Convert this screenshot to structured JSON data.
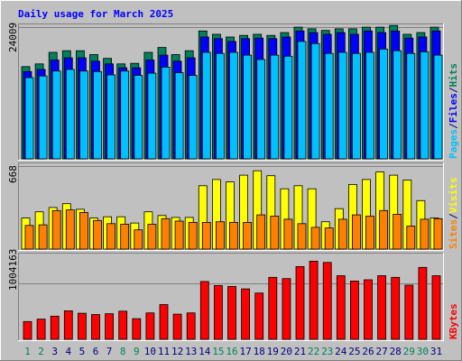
{
  "title": "Daily usage for March 2025",
  "colors": {
    "background": "#c0c0c0",
    "title": "#0000ff",
    "hits": "#00805c",
    "files": "#0000ff",
    "pages": "#00c0ff",
    "visits": "#ffff00",
    "sites": "#ff8000",
    "kbytes": "#ff0000",
    "weekend_label": "#00805c",
    "weekday_label": "#000080"
  },
  "chart_data": [
    {
      "type": "bar",
      "panel": "hits-files-pages",
      "categories": [
        "1",
        "2",
        "3",
        "4",
        "5",
        "6",
        "7",
        "8",
        "9",
        "10",
        "11",
        "12",
        "13",
        "14",
        "15",
        "16",
        "17",
        "18",
        "19",
        "20",
        "21",
        "22",
        "23",
        "24",
        "25",
        "26",
        "27",
        "28",
        "29",
        "30",
        "31"
      ],
      "weekend_days": [
        "1",
        "2",
        "8",
        "9",
        "15",
        "16",
        "22",
        "23",
        "29",
        "30"
      ],
      "axis_max_label": "24009",
      "ylim": [
        0,
        24009
      ],
      "legend": [
        {
          "label": "Pages",
          "color": "#00c0ff"
        },
        {
          "label": "/",
          "color": "#000080"
        },
        {
          "label": "Files",
          "color": "#0000ff"
        },
        {
          "label": "/",
          "color": "#000080"
        },
        {
          "label": "Hits",
          "color": "#00805c"
        }
      ],
      "series": [
        {
          "name": "Hits",
          "values": [
            16800,
            17300,
            19400,
            19700,
            19700,
            19000,
            18300,
            17300,
            17400,
            19400,
            20300,
            19000,
            19700,
            23300,
            22700,
            22200,
            22500,
            22700,
            22500,
            23000,
            24000,
            23700,
            23400,
            23700,
            23700,
            24000,
            24000,
            24300,
            22700,
            23000,
            24000
          ]
        },
        {
          "name": "Files",
          "values": [
            15900,
            16300,
            18000,
            18400,
            18400,
            17800,
            17300,
            16600,
            16600,
            18000,
            18900,
            17800,
            18400,
            22200,
            21900,
            21400,
            21900,
            22000,
            21900,
            22200,
            23300,
            23000,
            22700,
            23000,
            22700,
            23300,
            23000,
            23300,
            22000,
            22200,
            23300
          ]
        },
        {
          "name": "Pages",
          "values": [
            14800,
            15100,
            16000,
            16300,
            16000,
            15900,
            15300,
            16000,
            15200,
            15600,
            16700,
            15700,
            15200,
            19400,
            19200,
            19400,
            18900,
            18100,
            18900,
            18700,
            21400,
            21000,
            19200,
            19400,
            19200,
            19400,
            20000,
            19700,
            19200,
            19500,
            18900
          ]
        }
      ]
    },
    {
      "type": "bar",
      "panel": "visits-sites",
      "categories": [
        "1",
        "2",
        "3",
        "4",
        "5",
        "6",
        "7",
        "8",
        "9",
        "10",
        "11",
        "12",
        "13",
        "14",
        "15",
        "16",
        "17",
        "18",
        "19",
        "20",
        "21",
        "22",
        "23",
        "24",
        "25",
        "26",
        "27",
        "28",
        "29",
        "30",
        "31"
      ],
      "axis_max_label": "668",
      "ylim": [
        0,
        668
      ],
      "legend": [
        {
          "label": "Sites",
          "color": "#ff8000"
        },
        {
          "label": "/",
          "color": "#000080"
        },
        {
          "label": "Visits",
          "color": "#ffff00"
        }
      ],
      "series": [
        {
          "name": "Visits",
          "values": [
            250,
            300,
            335,
            365,
            320,
            250,
            260,
            260,
            210,
            300,
            270,
            255,
            255,
            510,
            560,
            540,
            595,
            630,
            590,
            485,
            510,
            485,
            220,
            325,
            520,
            560,
            620,
            595,
            555,
            390,
            250
          ]
        },
        {
          "name": "Sites",
          "values": [
            190,
            195,
            310,
            315,
            295,
            230,
            205,
            200,
            155,
            200,
            245,
            225,
            215,
            215,
            220,
            215,
            215,
            275,
            265,
            240,
            205,
            175,
            170,
            240,
            275,
            265,
            310,
            280,
            185,
            240,
            245
          ]
        }
      ]
    },
    {
      "type": "bar",
      "panel": "kbytes",
      "categories": [
        "1",
        "2",
        "3",
        "4",
        "5",
        "6",
        "7",
        "8",
        "9",
        "10",
        "11",
        "12",
        "13",
        "14",
        "15",
        "16",
        "17",
        "18",
        "19",
        "20",
        "21",
        "22",
        "23",
        "24",
        "25",
        "26",
        "27",
        "28",
        "29",
        "30",
        "31"
      ],
      "axis_max_label": "1004163",
      "ylim": [
        0,
        1004163
      ],
      "legend": [
        {
          "label": "KBytes",
          "color": "#ff0000"
        }
      ],
      "series": [
        {
          "name": "KBytes",
          "values": [
            215000,
            245000,
            280000,
            345000,
            315000,
            300000,
            310000,
            340000,
            250000,
            320000,
            420000,
            305000,
            320000,
            700000,
            650000,
            640000,
            610000,
            560000,
            750000,
            735000,
            880000,
            945000,
            930000,
            770000,
            705000,
            720000,
            770000,
            750000,
            655000,
            870000,
            770000
          ]
        }
      ]
    }
  ]
}
